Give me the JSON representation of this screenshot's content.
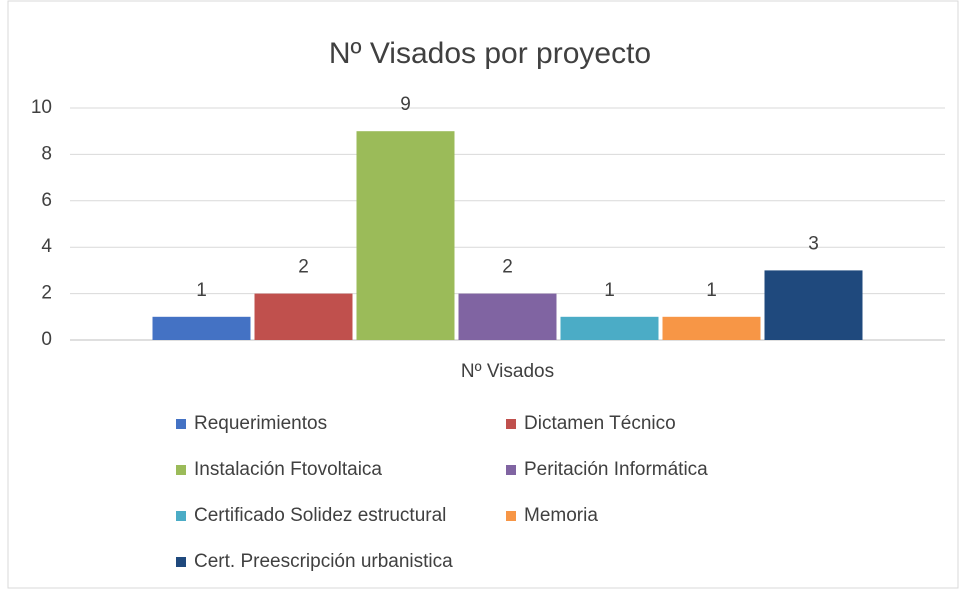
{
  "chart_data": {
    "type": "bar",
    "title": "Nº Visados por proyecto",
    "categories": [
      "Nº Visados"
    ],
    "series": [
      {
        "name": "Requerimientos",
        "color": "#4472c4",
        "values": [
          1
        ]
      },
      {
        "name": "Dictamen Técnico",
        "color": "#c0504d",
        "values": [
          2
        ]
      },
      {
        "name": "Instalación Ftovoltaica",
        "color": "#9bbb59",
        "values": [
          9
        ]
      },
      {
        "name": "Peritación Informática",
        "color": "#8064a2",
        "values": [
          2
        ]
      },
      {
        "name": "Certificado Solidez estructural",
        "color": "#4bacc6",
        "values": [
          1
        ]
      },
      {
        "name": "Memoria",
        "color": "#f79646",
        "values": [
          1
        ]
      },
      {
        "name": "Cert. Preescripción urbanistica",
        "color": "#1f497d",
        "values": [
          3
        ]
      }
    ],
    "ylim": [
      0,
      10
    ],
    "yticks": [
      0,
      2,
      4,
      6,
      8,
      10
    ],
    "grid": true,
    "legend": "bottom"
  }
}
